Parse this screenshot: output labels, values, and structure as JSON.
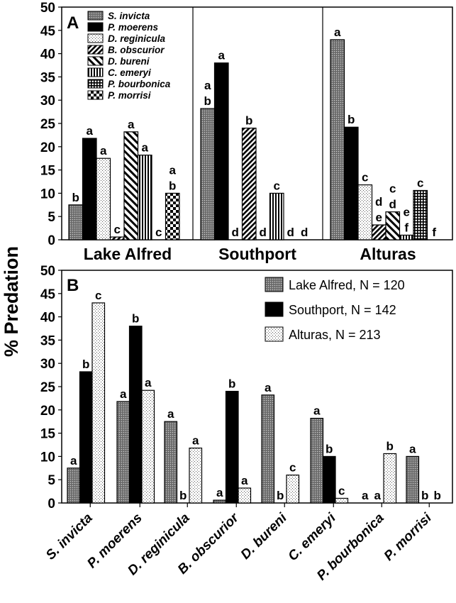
{
  "y_axis_label": "% Predation",
  "chart_data": [
    {
      "panel": "A",
      "type": "bar",
      "categories": [
        "Lake Alfred",
        "Southport",
        "Alturas"
      ],
      "series": [
        {
          "name": "S. invicta",
          "values": [
            7.5,
            28.2,
            43
          ],
          "letters": [
            "b",
            "a\nb",
            "a"
          ]
        },
        {
          "name": "P. moerens",
          "values": [
            21.8,
            38,
            24.2
          ],
          "letters": [
            "a",
            "a",
            "b"
          ]
        },
        {
          "name": "D. reginicula",
          "values": [
            17.5,
            0,
            11.8
          ],
          "letters": [
            "a",
            "d",
            "c"
          ]
        },
        {
          "name": "B. obscurior",
          "values": [
            0.6,
            24,
            3.2
          ],
          "letters": [
            "c",
            "b",
            "d\ne"
          ]
        },
        {
          "name": "D. bureni",
          "values": [
            23.2,
            0,
            6
          ],
          "letters": [
            "a",
            "d",
            "c\nd"
          ]
        },
        {
          "name": "C. emeryi",
          "values": [
            18.2,
            10,
            1
          ],
          "letters": [
            "a",
            "c",
            "e\nf"
          ]
        },
        {
          "name": "P. bourbonica",
          "values": [
            0,
            0,
            10.6
          ],
          "letters": [
            "c",
            "d",
            "c"
          ]
        },
        {
          "name": "P. morrisi",
          "values": [
            10,
            0,
            0
          ],
          "letters": [
            "a\nb",
            "d",
            "f"
          ]
        }
      ],
      "ylim": [
        0,
        50
      ],
      "yticks": [
        "0",
        "5",
        "10",
        "15",
        "20",
        "25",
        "30",
        "35",
        "40",
        "45",
        "50"
      ],
      "legend": "top-left"
    },
    {
      "panel": "B",
      "type": "bar",
      "categories": [
        "S. invicta",
        "P. moerens",
        "D. reginicula",
        "B. obscurior",
        "D. bureni",
        "C. emeryi",
        "P. bourbonica",
        "P. morrisi"
      ],
      "series": [
        {
          "name": "Lake Alfred, N = 120",
          "values": [
            7.5,
            21.8,
            17.5,
            0.6,
            23.2,
            18.2,
            0,
            10
          ],
          "letters": [
            "a",
            "a",
            "a",
            "a",
            "a",
            "a",
            "a",
            "a"
          ]
        },
        {
          "name": "Southport, N = 142",
          "values": [
            28.2,
            38,
            0,
            24,
            0,
            10,
            0,
            0
          ],
          "letters": [
            "b",
            "b",
            "b",
            "b",
            "b",
            "b",
            "a",
            "b"
          ]
        },
        {
          "name": "Alturas, N = 213",
          "values": [
            43,
            24.2,
            11.8,
            3.2,
            6,
            1,
            10.6,
            0
          ],
          "letters": [
            "c",
            "a",
            "a",
            "a",
            "c",
            "c",
            "b",
            "b"
          ]
        }
      ],
      "ylim": [
        0,
        50
      ],
      "yticks": [
        "0",
        "5",
        "10",
        "15",
        "20",
        "25",
        "30",
        "35",
        "40",
        "45",
        "50"
      ],
      "legend": "top-right"
    }
  ]
}
